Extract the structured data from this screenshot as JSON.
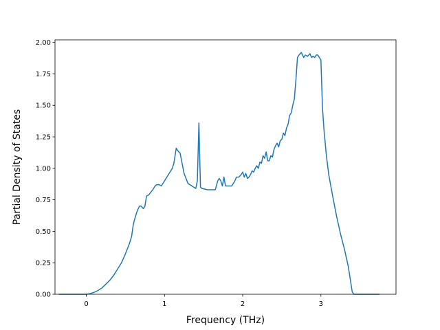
{
  "chart_data": {
    "type": "line",
    "title": "",
    "xlabel": "Frequency (THz)",
    "ylabel": "Partial Density of States",
    "xlim": [
      -0.4,
      3.96
    ],
    "ylim": [
      0.0,
      2.02
    ],
    "xticks": [
      0,
      1,
      2,
      3
    ],
    "yticks": [
      0.0,
      0.25,
      0.5,
      0.75,
      1.0,
      1.25,
      1.5,
      1.75,
      2.0
    ],
    "xtick_labels": [
      "0",
      "1",
      "2",
      "3"
    ],
    "ytick_labels": [
      "0.00",
      "0.25",
      "0.50",
      "0.75",
      "1.00",
      "1.25",
      "1.50",
      "1.75",
      "2.00"
    ],
    "grid": false,
    "line_color": "#1f77b4",
    "series": [
      {
        "x": [
          -0.35,
          -0.1,
          0.0,
          0.05,
          0.1,
          0.15,
          0.2,
          0.25,
          0.3,
          0.35,
          0.38,
          0.4,
          0.45,
          0.5,
          0.55,
          0.58,
          0.6,
          0.62,
          0.65,
          0.68,
          0.7,
          0.73,
          0.75,
          0.77,
          0.8,
          0.85,
          0.88,
          0.9,
          0.93,
          0.96,
          1.0,
          1.05,
          1.1,
          1.12,
          1.15,
          1.17,
          1.2,
          1.25,
          1.3,
          1.35,
          1.4,
          1.42,
          1.44,
          1.46,
          1.48,
          1.55,
          1.6,
          1.65,
          1.68,
          1.7,
          1.72,
          1.74,
          1.76,
          1.78,
          1.8,
          1.82,
          1.86,
          1.9,
          1.92,
          1.95,
          1.98,
          2.0,
          2.02,
          2.04,
          2.06,
          2.08,
          2.1,
          2.12,
          2.14,
          2.16,
          2.18,
          2.2,
          2.22,
          2.24,
          2.26,
          2.28,
          2.3,
          2.32,
          2.34,
          2.36,
          2.38,
          2.4,
          2.42,
          2.44,
          2.46,
          2.48,
          2.5,
          2.52,
          2.54,
          2.56,
          2.58,
          2.6,
          2.62,
          2.64,
          2.66,
          2.68,
          2.7,
          2.72,
          2.75,
          2.78,
          2.8,
          2.83,
          2.86,
          2.88,
          2.9,
          2.92,
          2.94,
          2.96,
          2.98,
          3.0,
          3.02,
          3.04,
          3.07,
          3.1,
          3.15,
          3.2,
          3.25,
          3.3,
          3.35,
          3.38,
          3.4,
          3.42,
          3.45,
          3.5,
          3.6,
          3.75
        ],
        "y": [
          0.0,
          0.0,
          0.0,
          0.005,
          0.015,
          0.03,
          0.05,
          0.08,
          0.11,
          0.15,
          0.18,
          0.2,
          0.25,
          0.32,
          0.4,
          0.46,
          0.55,
          0.6,
          0.66,
          0.7,
          0.7,
          0.68,
          0.7,
          0.78,
          0.79,
          0.83,
          0.86,
          0.87,
          0.87,
          0.86,
          0.9,
          0.95,
          1.0,
          1.04,
          1.16,
          1.14,
          1.12,
          0.96,
          0.88,
          0.86,
          0.84,
          0.9,
          1.36,
          0.85,
          0.84,
          0.83,
          0.83,
          0.83,
          0.9,
          0.92,
          0.9,
          0.86,
          0.93,
          0.86,
          0.86,
          0.86,
          0.86,
          0.9,
          0.93,
          0.93,
          0.95,
          0.97,
          0.93,
          0.96,
          0.92,
          0.93,
          0.95,
          0.98,
          0.97,
          1.0,
          1.02,
          1.0,
          1.05,
          1.04,
          1.1,
          1.08,
          1.13,
          1.06,
          1.06,
          1.1,
          1.09,
          1.15,
          1.18,
          1.2,
          1.17,
          1.22,
          1.23,
          1.28,
          1.26,
          1.32,
          1.35,
          1.42,
          1.44,
          1.5,
          1.55,
          1.7,
          1.88,
          1.9,
          1.92,
          1.88,
          1.9,
          1.89,
          1.91,
          1.88,
          1.89,
          1.88,
          1.9,
          1.9,
          1.88,
          1.86,
          1.48,
          1.3,
          1.1,
          0.95,
          0.78,
          0.62,
          0.48,
          0.36,
          0.22,
          0.1,
          0.02,
          0.0,
          0.0,
          0.0,
          0.0,
          0.0
        ]
      }
    ]
  }
}
